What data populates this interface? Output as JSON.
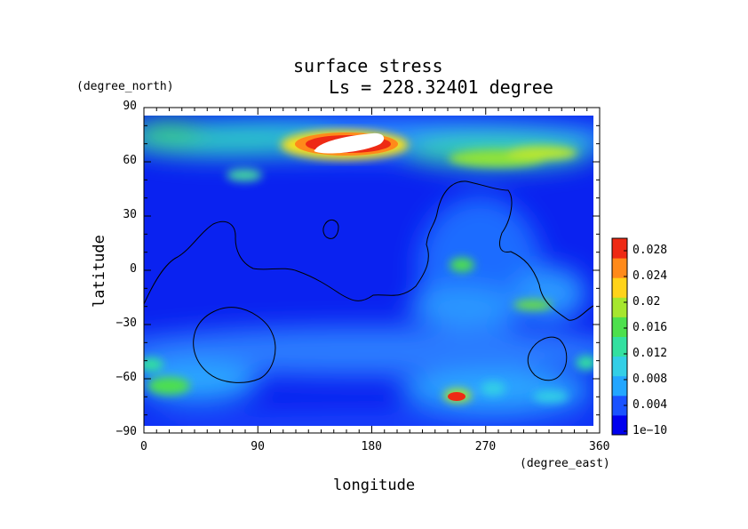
{
  "chart_data": {
    "type": "heatmap",
    "title": "surface stress",
    "subtitle": "Ls = 228.32401 degree",
    "xlabel": "longitude",
    "ylabel": "latitude",
    "x_unit": "(degree_east)",
    "y_unit": "(degree_north)",
    "xlim": [
      0,
      360
    ],
    "ylim": [
      -90,
      90
    ],
    "x_ticks": [
      "0",
      "90",
      "180",
      "270",
      "360"
    ],
    "y_ticks": [
      "90",
      "60",
      "30",
      "0",
      "−30",
      "−60",
      "−90"
    ],
    "colorbar": {
      "range": [
        0,
        0.03
      ],
      "tick_labels": [
        "0.028",
        "0.024",
        "0.02",
        "0.016",
        "0.012",
        "0.008",
        "0.004",
        "1e−10"
      ],
      "colors": [
        "#0000ee",
        "#1a52ff",
        "#23a6ff",
        "#33cfe6",
        "#33e0a0",
        "#4de04d",
        "#a6e62e",
        "#ffd31a",
        "#ff8a1a",
        "#ee2a14"
      ]
    },
    "sampled_values": {
      "longitudes": [
        0,
        30,
        60,
        90,
        120,
        150,
        180,
        210,
        240,
        270,
        300,
        330,
        360
      ],
      "latitudes": [
        85,
        75,
        60,
        45,
        30,
        15,
        0,
        -15,
        -30,
        -45,
        -60,
        -75,
        -85
      ],
      "grid": [
        [
          0.006,
          0.006,
          0.006,
          0.006,
          0.007,
          0.008,
          0.008,
          0.007,
          0.006,
          0.006,
          0.006,
          0.006,
          0.006
        ],
        [
          0.012,
          0.014,
          0.012,
          0.013,
          0.02,
          0.031,
          0.032,
          0.014,
          0.01,
          0.01,
          0.012,
          0.012,
          0.012
        ],
        [
          0.004,
          0.003,
          0.004,
          0.006,
          0.004,
          0.004,
          0.005,
          0.004,
          0.009,
          0.014,
          0.014,
          0.015,
          0.004
        ],
        [
          0.003,
          0.003,
          0.002,
          0.004,
          0.002,
          0.002,
          0.004,
          0.003,
          0.004,
          0.006,
          0.003,
          0.004,
          0.003
        ],
        [
          0.003,
          0.002,
          0.003,
          0.003,
          0.002,
          0.002,
          0.003,
          0.003,
          0.006,
          0.007,
          0.004,
          0.005,
          0.003
        ],
        [
          0.002,
          0.002,
          0.002,
          0.002,
          0.002,
          0.002,
          0.002,
          0.003,
          0.005,
          0.008,
          0.005,
          0.006,
          0.002
        ],
        [
          0.002,
          0.002,
          0.002,
          0.002,
          0.002,
          0.002,
          0.002,
          0.002,
          0.006,
          0.011,
          0.006,
          0.006,
          0.002
        ],
        [
          0.003,
          0.002,
          0.002,
          0.002,
          0.002,
          0.002,
          0.002,
          0.003,
          0.006,
          0.009,
          0.01,
          0.008,
          0.003
        ],
        [
          0.005,
          0.004,
          0.003,
          0.004,
          0.004,
          0.004,
          0.004,
          0.005,
          0.006,
          0.006,
          0.006,
          0.006,
          0.005
        ],
        [
          0.007,
          0.006,
          0.005,
          0.006,
          0.008,
          0.008,
          0.007,
          0.007,
          0.007,
          0.006,
          0.004,
          0.007,
          0.007
        ],
        [
          0.011,
          0.01,
          0.006,
          0.005,
          0.007,
          0.006,
          0.006,
          0.008,
          0.01,
          0.009,
          0.007,
          0.008,
          0.011
        ],
        [
          0.006,
          0.008,
          0.006,
          0.006,
          0.006,
          0.006,
          0.007,
          0.008,
          0.016,
          0.007,
          0.009,
          0.008,
          0.006
        ],
        [
          0.005,
          0.005,
          0.005,
          0.005,
          0.005,
          0.005,
          0.005,
          0.005,
          0.005,
          0.005,
          0.005,
          0.005,
          0.005
        ]
      ]
    }
  }
}
